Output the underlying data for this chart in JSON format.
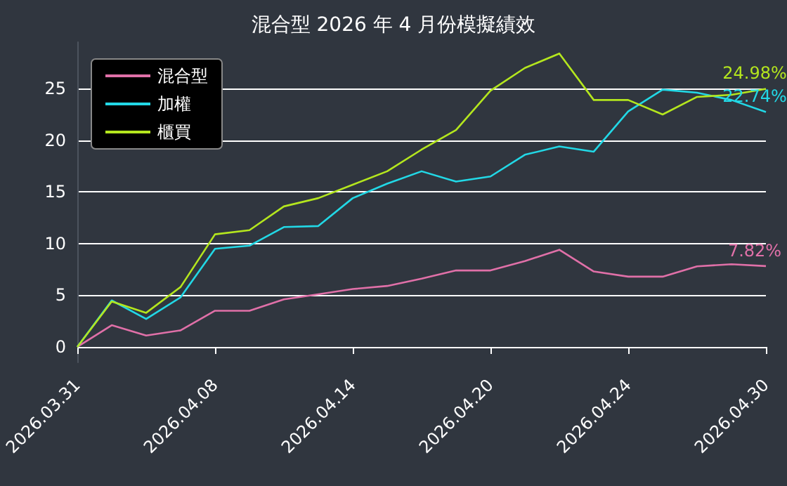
{
  "chart_data": {
    "type": "line",
    "title": "混合型 2026 年 4 月份模擬績效",
    "categories": [
      "2026.03.31",
      null,
      null,
      null,
      "2026.04.08",
      null,
      null,
      null,
      "2026.04.14",
      null,
      null,
      null,
      "2026.04.20",
      null,
      null,
      null,
      "2026.04.24",
      null,
      null,
      null,
      "2026.04.30"
    ],
    "series": [
      {
        "name": "混合型",
        "color": "#e070a8",
        "values": [
          0,
          2.1,
          1.1,
          1.6,
          3.5,
          3.5,
          4.6,
          5.1,
          5.6,
          5.9,
          6.6,
          7.4,
          7.4,
          8.3,
          9.4,
          7.3,
          6.8,
          6.8,
          7.8,
          8.0,
          7.82
        ],
        "value_labels": [
          null,
          null,
          null,
          null,
          null,
          null,
          null,
          null,
          null,
          null,
          null,
          null,
          null,
          null,
          null,
          null,
          null,
          null,
          null,
          null,
          "7.82%"
        ]
      },
      {
        "name": "加權",
        "color": "#22d8e6",
        "values": [
          0,
          4.5,
          2.7,
          4.8,
          9.5,
          9.8,
          11.6,
          11.7,
          14.4,
          15.8,
          17.0,
          16.0,
          16.5,
          18.6,
          19.4,
          18.9,
          22.8,
          24.9,
          24.6,
          23.9,
          22.74
        ],
        "value_labels": [
          null,
          null,
          null,
          null,
          null,
          null,
          null,
          null,
          null,
          null,
          null,
          null,
          null,
          null,
          null,
          null,
          null,
          null,
          null,
          null,
          "22.74%"
        ]
      },
      {
        "name": "櫃買",
        "color": "#b4e61e",
        "values": [
          0,
          4.4,
          3.3,
          5.8,
          10.9,
          11.3,
          13.6,
          14.4,
          15.7,
          17.0,
          19.1,
          21.0,
          24.8,
          27.0,
          28.4,
          23.9,
          23.9,
          22.5,
          24.2,
          24.4,
          24.98
        ],
        "value_labels": [
          null,
          null,
          null,
          null,
          null,
          null,
          null,
          null,
          null,
          null,
          null,
          null,
          null,
          null,
          null,
          null,
          null,
          null,
          null,
          null,
          "24.98%"
        ]
      }
    ],
    "ylim": [
      -1.5,
      29.5
    ],
    "yticks": [
      0,
      5,
      10,
      15,
      20,
      25
    ],
    "grid": "y",
    "legend": "top left",
    "line_style": "solid"
  }
}
